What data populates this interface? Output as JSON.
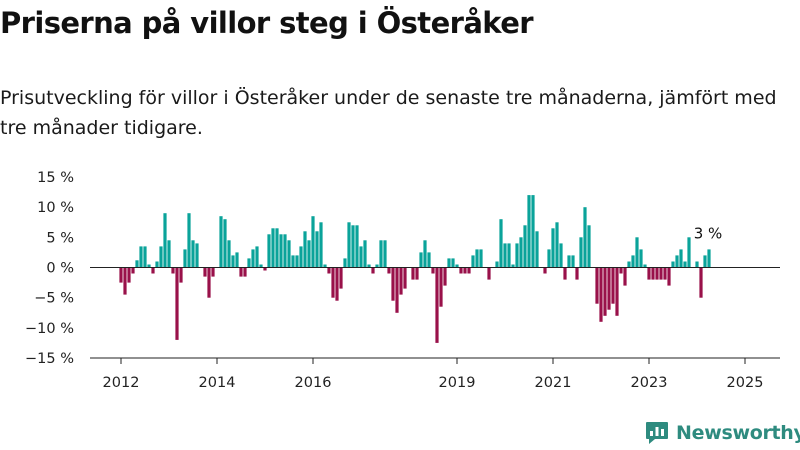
{
  "header": {
    "title": "Priserna på villor steg i Österåker",
    "subtitle": "Prisutveckling för villor i Österåker under de senaste tre månaderna, jämfört med tre månader tidigare."
  },
  "logo": {
    "text": "Newsworthy",
    "icon": "newsworthy-logo-icon"
  },
  "colors": {
    "positive": "#0aa39a",
    "negative": "#99114a",
    "axis": "#222222",
    "grid": "#dddddd",
    "logo": "#2e8b7f"
  },
  "chart_data": {
    "type": "bar",
    "title": "",
    "xlabel": "",
    "ylabel": "",
    "ylim": [
      -15,
      15
    ],
    "yunit": "%",
    "grid": false,
    "legend": "none",
    "y_ticks": [
      {
        "value": 15,
        "label": "15 %"
      },
      {
        "value": 10,
        "label": "10 %"
      },
      {
        "value": 5,
        "label": "5 %"
      },
      {
        "value": 0,
        "label": "0 %"
      },
      {
        "value": -5,
        "label": "−5 %"
      },
      {
        "value": -10,
        "label": "−10 %"
      },
      {
        "value": -15,
        "label": "−15 %"
      }
    ],
    "x_ticks": [
      "2012",
      "2014",
      "2016",
      "2019",
      "2021",
      "2023",
      "2025"
    ],
    "x_tick_index": [
      0,
      24,
      48,
      84,
      108,
      132,
      156
    ],
    "first_index": 0,
    "series": [
      {
        "values": [
          -2.5,
          -4.5,
          -2.5,
          -1,
          1.2,
          3.5,
          3.5,
          0.5,
          -1,
          1,
          3.5,
          9,
          4.5,
          -1,
          -12,
          -2.5,
          3,
          9,
          4.5,
          4,
          0,
          -1.5,
          -5,
          -1.5,
          0,
          8.5,
          8,
          4.5,
          2,
          2.5,
          -1.5,
          -1.5,
          1.5,
          3,
          3.5,
          0.5,
          -0.5,
          5.5,
          6.5,
          6.5,
          5.5,
          5.5,
          4.5,
          2,
          2,
          3.5,
          6,
          4.5,
          8.5,
          6,
          7.5,
          0.5,
          -1,
          -5,
          -5.5,
          -3.5,
          1.5,
          7.5,
          7,
          7,
          3.5,
          4.5,
          0.5,
          -1,
          0.5,
          4.5,
          4.5,
          -1,
          -5.5,
          -7.5,
          -4.5,
          -3.5,
          0,
          -2,
          -2,
          2.5,
          4.5,
          2.5,
          -1,
          -12.5,
          -6.5,
          -3,
          1.5,
          1.5,
          0.5,
          -1,
          -1,
          -1,
          2,
          3,
          3,
          0,
          -2,
          0,
          1,
          8,
          4,
          4,
          0.5,
          4,
          5,
          7,
          12,
          12,
          6,
          0,
          -1,
          3,
          6.5,
          7.5,
          4,
          -2,
          2,
          2,
          -2,
          5,
          10,
          7,
          0,
          -6,
          -9,
          -8,
          -7,
          -6,
          -8,
          -1,
          -3,
          1,
          2,
          5,
          3,
          0.5,
          -2,
          -2,
          -2,
          -2,
          -2,
          -3,
          1,
          2,
          3,
          1,
          5,
          0,
          1,
          -5,
          2,
          3
        ],
        "last_label": "3 %"
      }
    ]
  }
}
